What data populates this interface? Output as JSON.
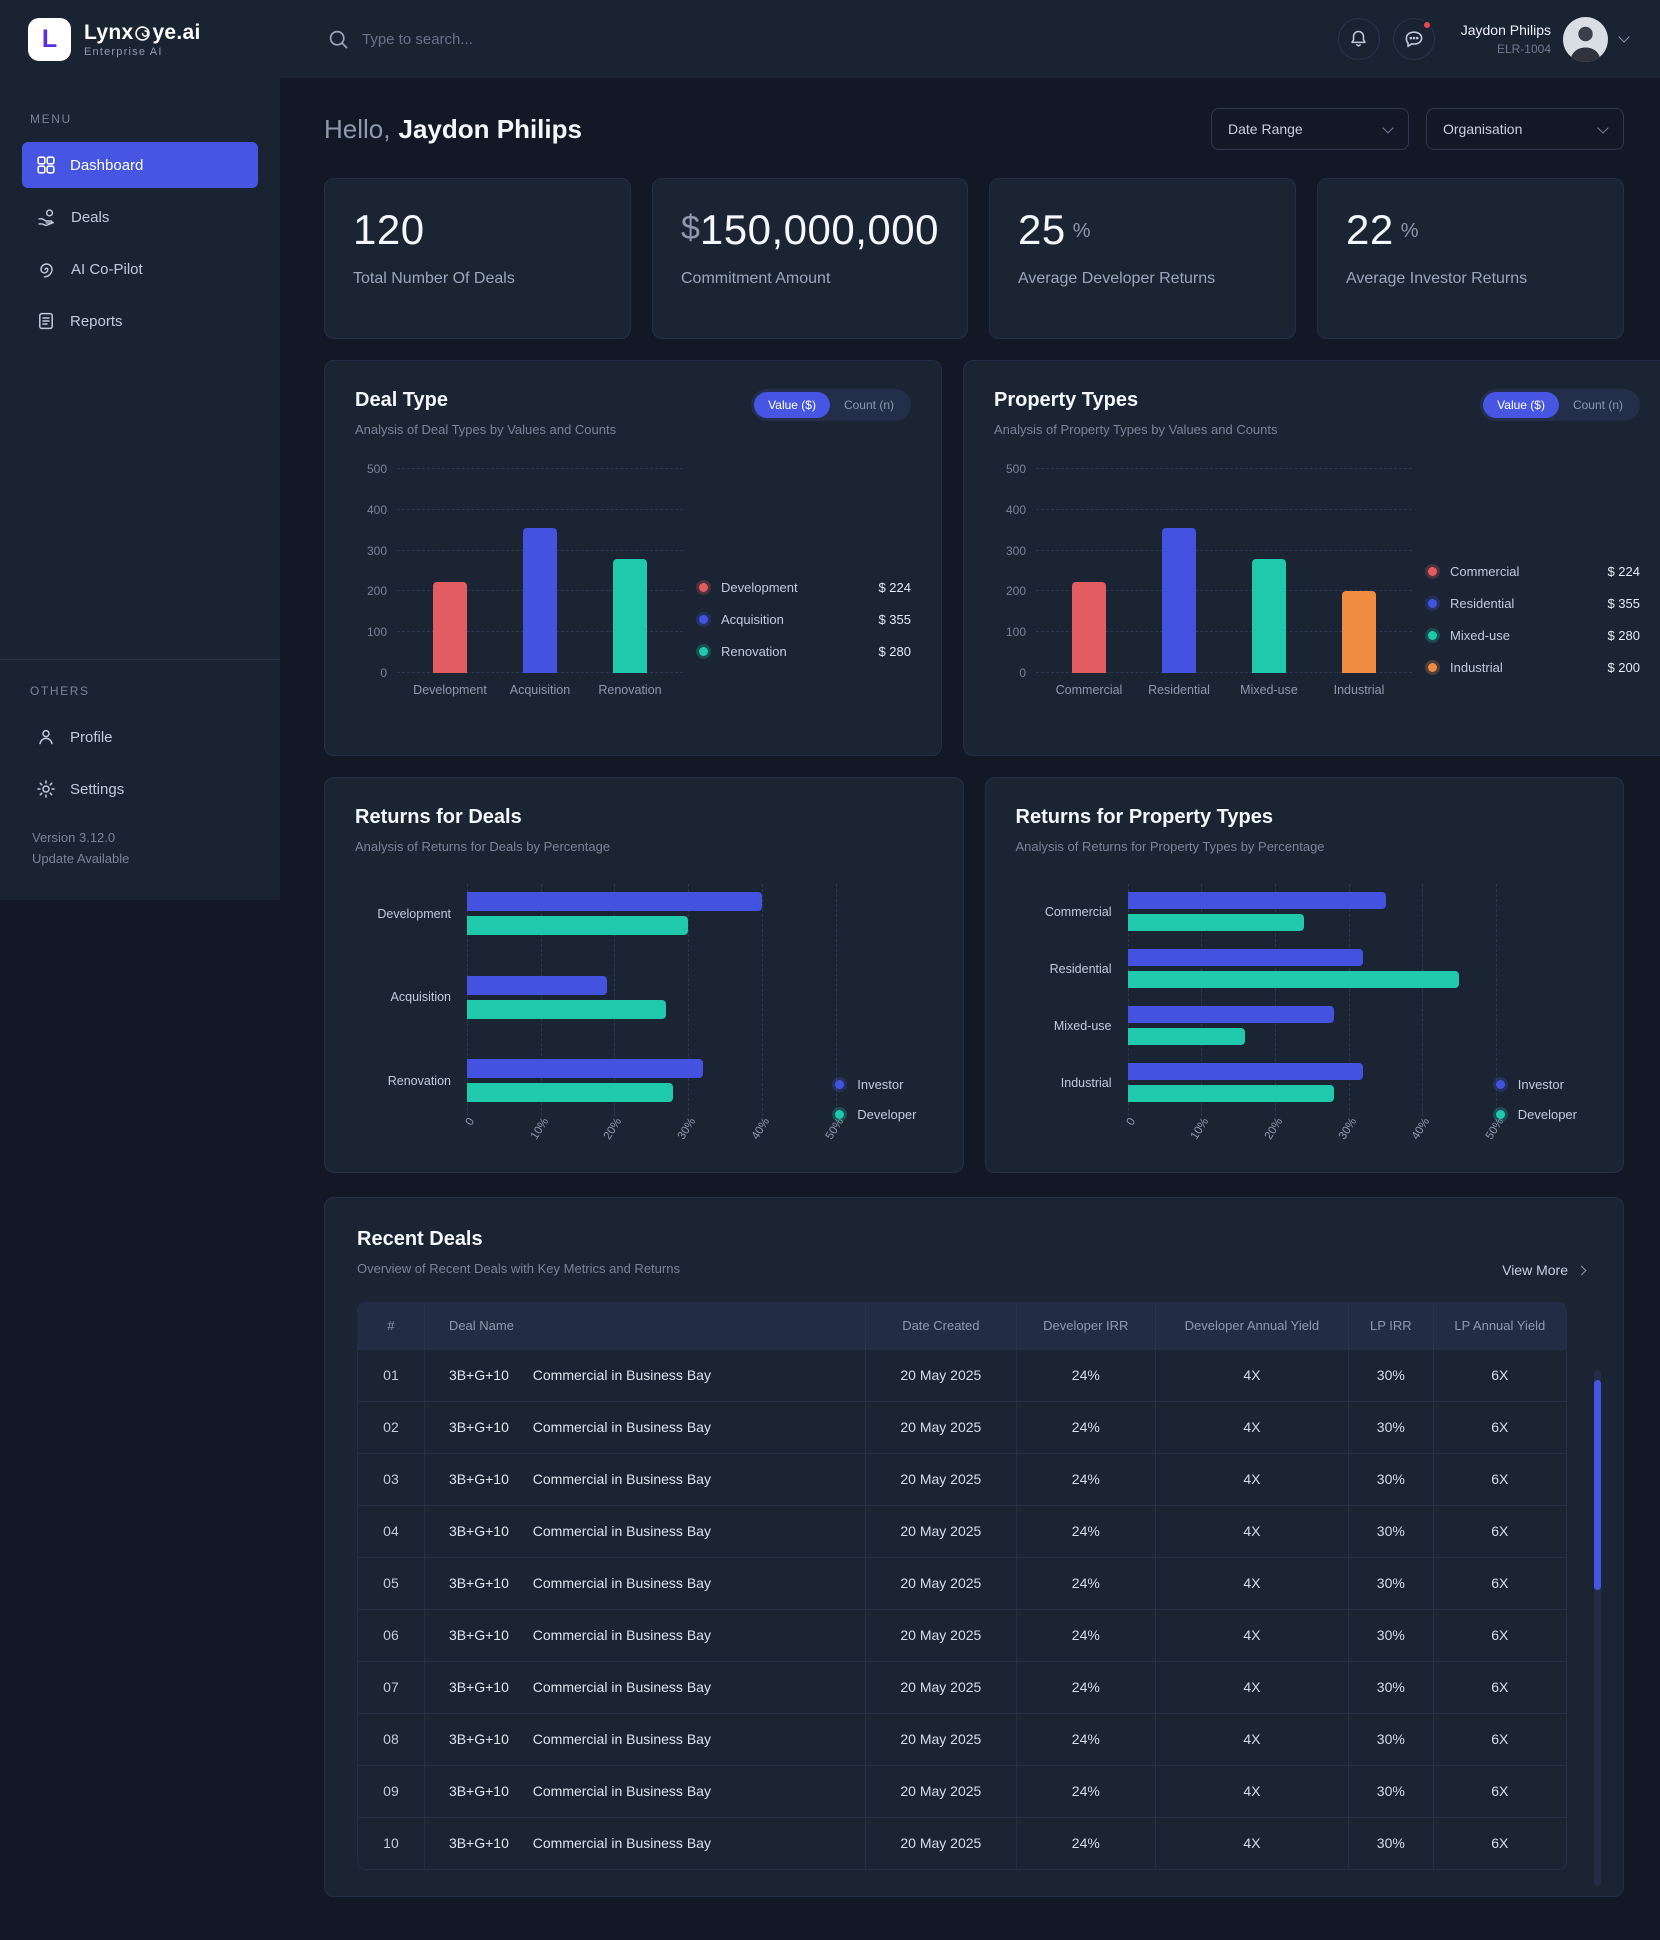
{
  "brand": {
    "logo_letter": "L",
    "name_pre": "Lynx",
    "name_post": "ye.ai",
    "subtitle": "Enterprise AI"
  },
  "topbar": {
    "search_placeholder": "Type to search...",
    "user_name": "Jaydon Philips",
    "user_id": "ELR-1004"
  },
  "sidebar": {
    "menu_label": "MENU",
    "items": [
      {
        "label": "Dashboard",
        "active": true
      },
      {
        "label": "Deals",
        "active": false
      },
      {
        "label": "AI Co-Pilot",
        "active": false
      },
      {
        "label": "Reports",
        "active": false
      }
    ],
    "others_label": "OTHERS",
    "other_items": [
      {
        "label": "Profile"
      },
      {
        "label": "Settings"
      }
    ],
    "version": "Version 3.12.0",
    "update": "Update Available"
  },
  "header": {
    "greeting": "Hello,",
    "name": "Jaydon Philips",
    "filters": [
      "Date Range",
      "Organisation"
    ]
  },
  "stats": [
    {
      "value": "120",
      "label": "Total Number Of Deals"
    },
    {
      "prefix": "$",
      "value": "150,000,000",
      "label": "Commitment Amount"
    },
    {
      "value": "25",
      "suffix": "%",
      "label": "Average Developer Returns"
    },
    {
      "value": "22",
      "suffix": "%",
      "label": "Average Investor Returns"
    }
  ],
  "toggles": {
    "value_label": "Value ($)",
    "count_label": "Count (n)"
  },
  "chart_data": [
    {
      "type": "bar",
      "title": "Deal Type",
      "subtitle": "Analysis of Deal Types by Values and Counts",
      "categories": [
        "Development",
        "Acquisition",
        "Renovation"
      ],
      "values": [
        224,
        355,
        280
      ],
      "colors": [
        "#E25C62",
        "#4353E0",
        "#1EC9AC"
      ],
      "legend": [
        {
          "label": "Development",
          "value": "$ 224",
          "color": "#E25C62"
        },
        {
          "label": "Acquisition",
          "value": "$ 355",
          "color": "#4353E0"
        },
        {
          "label": "Renovation",
          "value": "$ 280",
          "color": "#1EC9AC"
        }
      ],
      "ylim": [
        0,
        500
      ],
      "yticks": [
        0,
        100,
        200,
        300,
        400,
        500
      ],
      "grid": "dashed-horizontal",
      "legend_position": "right"
    },
    {
      "type": "bar",
      "title": "Property Types",
      "subtitle": "Analysis of Property Types by Values and Counts",
      "categories": [
        "Commercial",
        "Residential",
        "Mixed-use",
        "Industrial"
      ],
      "values": [
        224,
        355,
        280,
        200
      ],
      "colors": [
        "#E25C62",
        "#4353E0",
        "#1EC9AC",
        "#EF8C42"
      ],
      "legend": [
        {
          "label": "Commercial",
          "value": "$ 224",
          "color": "#E25C62"
        },
        {
          "label": "Residential",
          "value": "$ 355",
          "color": "#4353E0"
        },
        {
          "label": "Mixed-use",
          "value": "$ 280",
          "color": "#1EC9AC"
        },
        {
          "label": "Industrial",
          "value": "$ 200",
          "color": "#EF8C42"
        }
      ],
      "ylim": [
        0,
        500
      ],
      "yticks": [
        0,
        100,
        200,
        300,
        400,
        500
      ],
      "grid": "dashed-horizontal",
      "legend_position": "right"
    },
    {
      "type": "hbar",
      "title": "Returns for Deals",
      "subtitle": "Analysis of Returns for Deals by Percentage",
      "categories": [
        "Development",
        "Acquisition",
        "Renovation"
      ],
      "series": [
        {
          "name": "Investor",
          "color": "#4353E0",
          "values": [
            40,
            19,
            32
          ]
        },
        {
          "name": "Developer",
          "color": "#1EC9AC",
          "values": [
            30,
            27,
            28
          ]
        }
      ],
      "xlim": [
        0,
        55
      ],
      "xtick_values": [
        0,
        10,
        20,
        30,
        40,
        50
      ],
      "xtick_labels": [
        "0",
        "10%",
        "20%",
        "30%",
        "40%",
        "50%"
      ],
      "grid": "dashed-vertical",
      "legend_position": "bottom-right"
    },
    {
      "type": "hbar",
      "title": "Returns for Property Types",
      "subtitle": "Analysis of Returns for Property Types by Percentage",
      "categories": [
        "Commercial",
        "Residential",
        "Mixed-use",
        "Industrial"
      ],
      "series": [
        {
          "name": "Investor",
          "color": "#4353E0",
          "values": [
            35,
            32,
            28,
            32
          ]
        },
        {
          "name": "Developer",
          "color": "#1EC9AC",
          "values": [
            24,
            45,
            16,
            28
          ]
        }
      ],
      "xlim": [
        0,
        55
      ],
      "xtick_values": [
        0,
        10,
        20,
        30,
        40,
        50
      ],
      "xtick_labels": [
        "0",
        "10%",
        "20%",
        "30%",
        "40%",
        "50%"
      ],
      "grid": "dashed-vertical",
      "legend_position": "bottom-right"
    }
  ],
  "table": {
    "title": "Recent Deals",
    "subtitle": "Overview of Recent Deals with Key Metrics and Returns",
    "view_more": "View More",
    "columns": [
      "#",
      "Deal Name",
      "Date Created",
      "Developer IRR",
      "Developer Annual Yield",
      "LP IRR",
      "LP Annual Yield"
    ],
    "rows": [
      {
        "num": "01",
        "code": "3B+G+10",
        "name": "Commercial in Business Bay",
        "date": "20 May 2025",
        "dev_irr": "24%",
        "dev_yield": "4X",
        "lp_irr": "30%",
        "lp_yield": "6X"
      },
      {
        "num": "02",
        "code": "3B+G+10",
        "name": "Commercial in Business Bay",
        "date": "20 May 2025",
        "dev_irr": "24%",
        "dev_yield": "4X",
        "lp_irr": "30%",
        "lp_yield": "6X"
      },
      {
        "num": "03",
        "code": "3B+G+10",
        "name": "Commercial in Business Bay",
        "date": "20 May 2025",
        "dev_irr": "24%",
        "dev_yield": "4X",
        "lp_irr": "30%",
        "lp_yield": "6X"
      },
      {
        "num": "04",
        "code": "3B+G+10",
        "name": "Commercial in Business Bay",
        "date": "20 May 2025",
        "dev_irr": "24%",
        "dev_yield": "4X",
        "lp_irr": "30%",
        "lp_yield": "6X"
      },
      {
        "num": "05",
        "code": "3B+G+10",
        "name": "Commercial in Business Bay",
        "date": "20 May 2025",
        "dev_irr": "24%",
        "dev_yield": "4X",
        "lp_irr": "30%",
        "lp_yield": "6X"
      },
      {
        "num": "06",
        "code": "3B+G+10",
        "name": "Commercial in Business Bay",
        "date": "20 May 2025",
        "dev_irr": "24%",
        "dev_yield": "4X",
        "lp_irr": "30%",
        "lp_yield": "6X"
      },
      {
        "num": "07",
        "code": "3B+G+10",
        "name": "Commercial in Business Bay",
        "date": "20 May 2025",
        "dev_irr": "24%",
        "dev_yield": "4X",
        "lp_irr": "30%",
        "lp_yield": "6X"
      },
      {
        "num": "08",
        "code": "3B+G+10",
        "name": "Commercial in Business Bay",
        "date": "20 May 2025",
        "dev_irr": "24%",
        "dev_yield": "4X",
        "lp_irr": "30%",
        "lp_yield": "6X"
      },
      {
        "num": "09",
        "code": "3B+G+10",
        "name": "Commercial in Business Bay",
        "date": "20 May 2025",
        "dev_irr": "24%",
        "dev_yield": "4X",
        "lp_irr": "30%",
        "lp_yield": "6X"
      },
      {
        "num": "10",
        "code": "3B+G+10",
        "name": "Commercial in Business Bay",
        "date": "20 May 2025",
        "dev_irr": "24%",
        "dev_yield": "4X",
        "lp_irr": "30%",
        "lp_yield": "6X"
      }
    ]
  },
  "colors": {
    "accent": "#4656E3",
    "red": "#E25C62",
    "blue": "#4353E0",
    "teal": "#1EC9AC",
    "orange": "#EF8C42",
    "notification": "#E8484F"
  }
}
